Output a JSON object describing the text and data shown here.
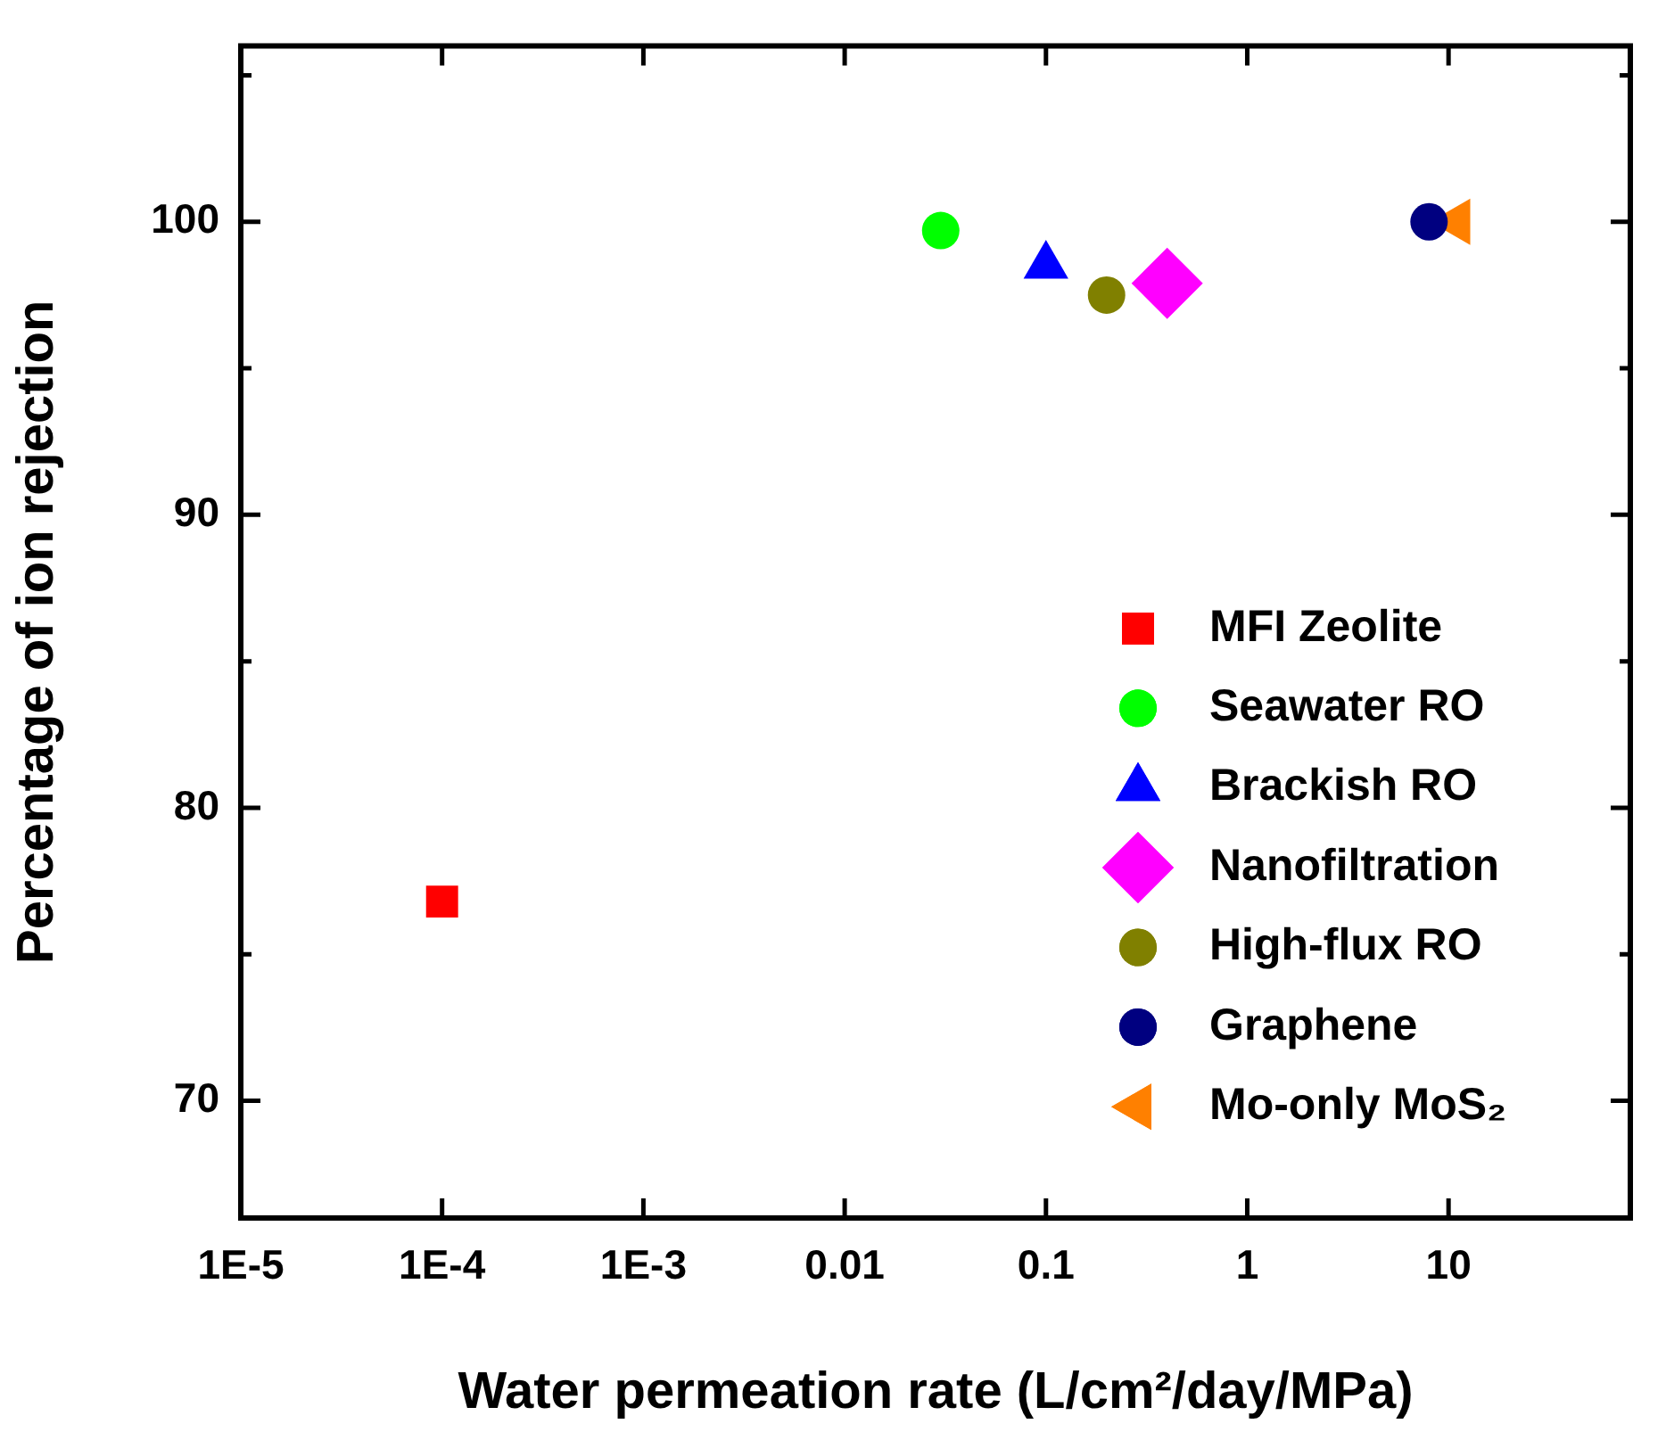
{
  "chart_data": {
    "type": "scatter",
    "xlabel": "Water permeation rate (L/cm²/day/MPa)",
    "ylabel": "Percentage of ion rejection",
    "log": "x",
    "grid": false,
    "legend": "bottom right",
    "xlim": [
      1e-05,
      80
    ],
    "xticks": [
      {
        "value": 1e-05,
        "label": "1E-5"
      },
      {
        "value": 0.0001,
        "label": "1E-4"
      },
      {
        "value": 0.001,
        "label": "1E-3"
      },
      0.01,
      0.1,
      1,
      10
    ],
    "ylim": [
      66,
      106
    ],
    "yticks": [
      70,
      {
        "value": 75,
        "label": null
      },
      80,
      {
        "value": 85,
        "label": null
      },
      90,
      {
        "value": 95,
        "label": null
      },
      100,
      {
        "value": 105,
        "label": null
      }
    ],
    "series": [
      {
        "name": "MFI Zeolite",
        "color": "#ff0000",
        "marker": "square",
        "x": [
          0.0001
        ],
        "values": [
          76.8
        ]
      },
      {
        "name": "Seawater RO",
        "color": "#00ff00",
        "marker": "circle",
        "x": [
          0.03
        ],
        "values": [
          99.7
        ]
      },
      {
        "name": "Brackish RO",
        "color": "#0000ff",
        "marker": "triangle",
        "x": [
          0.1
        ],
        "values": [
          98.5
        ]
      },
      {
        "name": "Nanofiltration",
        "color": "#ff00ff",
        "marker": "diamond",
        "x": [
          0.4
        ],
        "values": [
          97.9
        ]
      },
      {
        "name": "High-flux RO",
        "color": "#808000",
        "x": [
          0.2
        ],
        "values": [
          97.5
        ]
      },
      {
        "name": "Graphene",
        "color": "#000080",
        "x": [
          8
        ],
        "values": [
          100
        ]
      },
      {
        "name": "Mo-only MoS₂",
        "color": "#ff8000",
        "marker": "triangle-left",
        "x": [
          11
        ],
        "values": [
          100
        ]
      }
    ]
  }
}
